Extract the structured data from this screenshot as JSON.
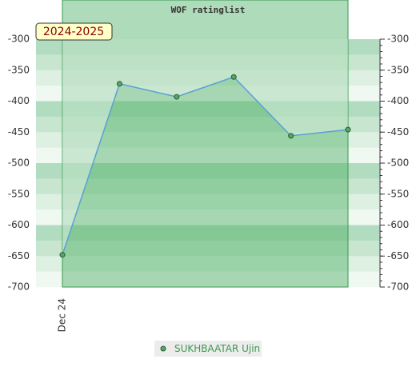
{
  "chart_data": {
    "type": "line",
    "title": "WOF ratinglist",
    "annotations": [
      "2024-2025"
    ],
    "categories": [
      "Dec 24",
      null,
      null,
      null,
      null,
      null
    ],
    "series": [
      {
        "name": "SUKHBAATAR Ujin",
        "color": "#5aa469",
        "line_color": "#5b9fd6",
        "values": [
          -648,
          -372,
          -393,
          -361,
          -456,
          -446
        ]
      }
    ],
    "ylim": [
      -700,
      -300
    ],
    "y_inverted": true,
    "yticks": [
      -300,
      -350,
      -400,
      -450,
      -500,
      -550,
      -600,
      -650,
      -700
    ]
  }
}
